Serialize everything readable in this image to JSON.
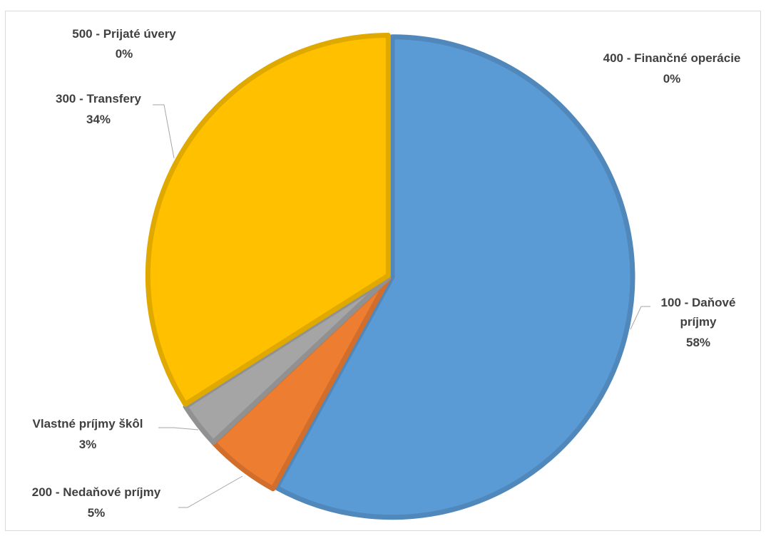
{
  "chart_data": {
    "type": "pie",
    "slices": [
      {
        "key": "danove",
        "category": "100 - Daňové príjmy",
        "value": 58,
        "percent_label": "58%",
        "color": "#5b9bd5"
      },
      {
        "key": "nedanove",
        "category": "200 - Nedaňové príjmy",
        "value": 5,
        "percent_label": "5%",
        "color": "#ed7d31"
      },
      {
        "key": "skoly",
        "category": "Vlastné príjmy škôl",
        "value": 3,
        "percent_label": "3%",
        "color": "#a5a5a5"
      },
      {
        "key": "transfery",
        "category": "300 - Transfery",
        "value": 34,
        "percent_label": "34%",
        "color": "#ffc000"
      },
      {
        "key": "uvery",
        "category": "500 - Prijaté úvery",
        "value": 0,
        "percent_label": "0%",
        "color": "#264478"
      },
      {
        "key": "financne",
        "category": "400 - Finančné operácie",
        "value": 0,
        "percent_label": "0%",
        "color": "#4472c4"
      }
    ],
    "labels": {
      "danove_line1": "100 - Daňové",
      "danove_line2": "príjmy",
      "danove_pct": "58%",
      "nedanove_line1": "200 - Nedaňové príjmy",
      "nedanove_pct": "5%",
      "skoly_line1": "Vlastné príjmy škôl",
      "skoly_pct": "3%",
      "transfery_line1": "300 - Transfery",
      "transfery_pct": "34%",
      "uvery_line1": "500 - Prijaté úvery",
      "uvery_pct": "0%",
      "financne_line1": "400 - Finančné operácie",
      "financne_pct": "0%"
    },
    "legend": "none",
    "data_labels": "outside"
  }
}
